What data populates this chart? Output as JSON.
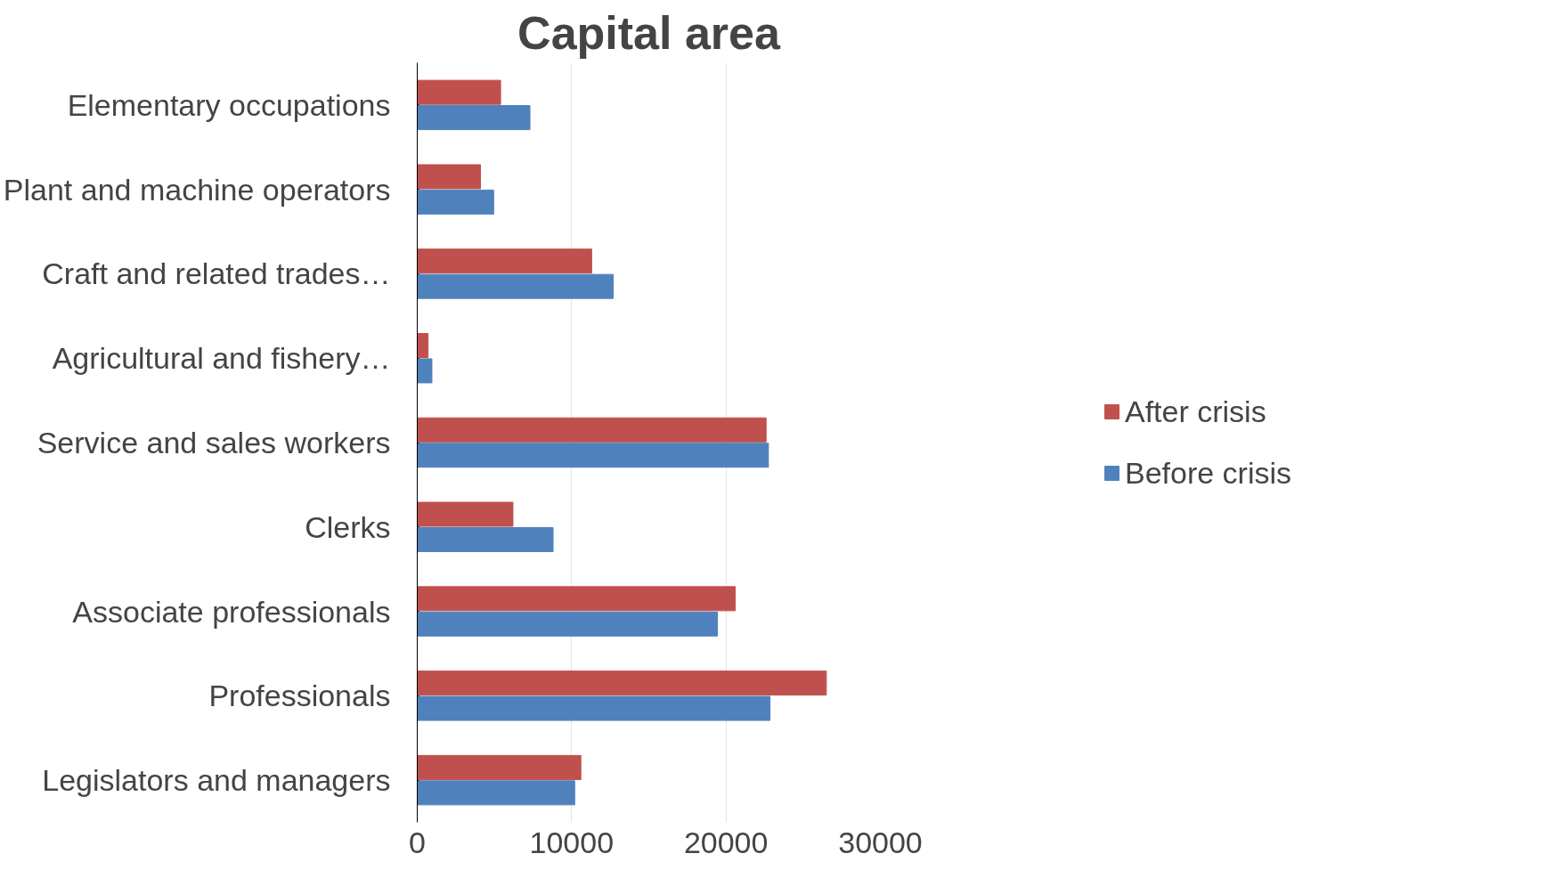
{
  "chart_data": {
    "type": "bar",
    "orientation": "horizontal",
    "title": "Capital area",
    "categories": [
      "Elementary occupations",
      "Plant and machine operators",
      "Craft and related trades…",
      "Agricultural and fishery…",
      "Service and sales workers",
      "Clerks",
      "Associate professionals",
      "Professionals",
      "Legislators and managers"
    ],
    "series": [
      {
        "name": "After crisis",
        "color": "#c0504d",
        "values": [
          5400,
          4100,
          11300,
          700,
          22600,
          6200,
          20600,
          26500,
          10600
        ]
      },
      {
        "name": "Before crisis",
        "color": "#4f81bd",
        "values": [
          7300,
          4950,
          12700,
          950,
          22750,
          8800,
          19450,
          22850,
          10200
        ]
      }
    ],
    "xlim": [
      0,
      30000
    ],
    "xticks": [
      0,
      10000,
      20000,
      30000
    ],
    "grid": "x",
    "legend": "right"
  }
}
